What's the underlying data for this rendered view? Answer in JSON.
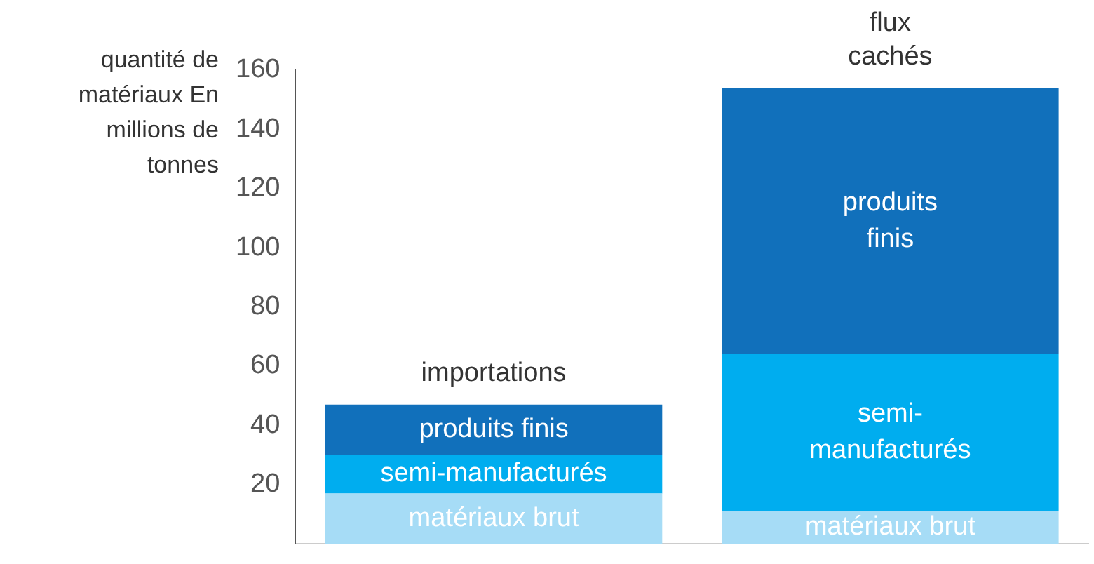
{
  "chart_data": {
    "type": "bar",
    "stacked": true,
    "ylabel": "quantité de matériaux En millions de tonnes",
    "categories": [
      "importations",
      "flux cachés"
    ],
    "series": [
      {
        "name": "matériaux brut",
        "color": "#a6dcf6",
        "values": [
          17,
          11
        ]
      },
      {
        "name": "semi-manufacturés",
        "color": "#00adef",
        "values": [
          13,
          53
        ]
      },
      {
        "name": "produits finis",
        "color": "#1170bb",
        "values": [
          17,
          90
        ]
      }
    ],
    "ylim": [
      0,
      160
    ],
    "yticks": [
      20,
      40,
      60,
      80,
      100,
      120,
      140,
      160
    ],
    "grid": false,
    "legend": false
  }
}
